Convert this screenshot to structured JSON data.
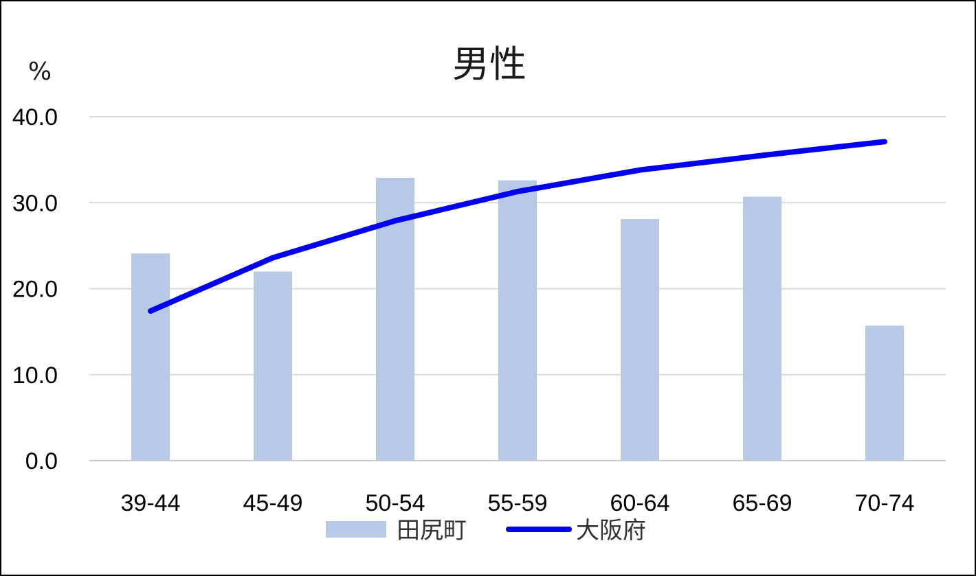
{
  "chart_data": {
    "type": "bar",
    "title": "男性",
    "ylabel": "%",
    "categories": [
      "39-44",
      "45-49",
      "50-54",
      "55-59",
      "60-64",
      "65-69",
      "70-74"
    ],
    "ylim": [
      0,
      40
    ],
    "yticks": [
      "0.0",
      "10.0",
      "20.0",
      "30.0",
      "40.0"
    ],
    "grid": true,
    "legend_position": "bottom",
    "series": [
      {
        "name": "田尻町",
        "kind": "bar",
        "color": "#b7c9e7",
        "values": [
          24.1,
          22.0,
          32.9,
          32.6,
          28.1,
          30.7,
          15.7
        ]
      },
      {
        "name": "大阪府",
        "kind": "line",
        "color": "#0000ee",
        "values": [
          17.4,
          23.6,
          27.9,
          31.3,
          33.8,
          35.5,
          37.1
        ]
      }
    ]
  }
}
